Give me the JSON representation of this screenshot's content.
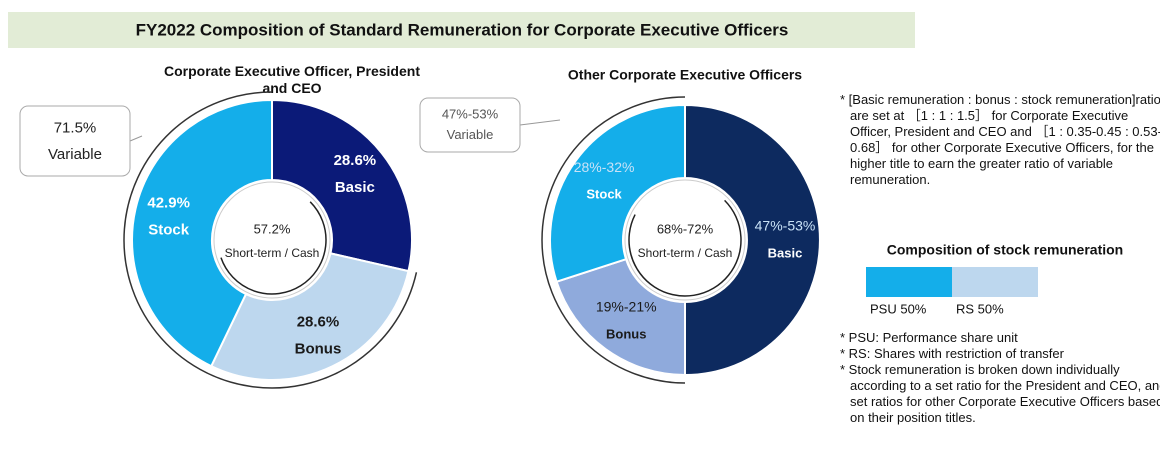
{
  "page_title": "FY2022 Composition of Standard Remuneration for Corporate Executive Officers",
  "chart_data": [
    {
      "type": "donut",
      "title": "Corporate Executive Officer, President and CEO",
      "categories": [
        "Basic",
        "Bonus",
        "Stock"
      ],
      "values": [
        28.6,
        28.6,
        42.9
      ],
      "value_labels": [
        "28.6%",
        "28.6%",
        "42.9%"
      ],
      "colors": [
        "#0b1a78",
        "#bdd7ee",
        "#14aeea"
      ],
      "text_colors": [
        "#ffffff",
        "#1a1a1a",
        "#ffffff"
      ],
      "inner": {
        "value": 57.2,
        "label": "57.2%",
        "text": "Short-term / Cash"
      },
      "outer": {
        "value": 71.5,
        "label": "71.5%",
        "text": "Variable"
      }
    },
    {
      "type": "donut",
      "title": "Other Corporate Executive Officers",
      "categories": [
        "Basic",
        "Bonus",
        "Stock"
      ],
      "values": [
        50,
        20,
        30
      ],
      "value_labels": [
        "47%-53%",
        "19%-21%",
        "28%-32%"
      ],
      "colors": [
        "#0d2a5f",
        "#8faadc",
        "#14aeea"
      ],
      "text_colors": [
        "#ffffff",
        "#1a1a1a",
        "#ffffff"
      ],
      "inner": {
        "value": 70,
        "label": "68%-72%",
        "text": "Short-term / Cash"
      },
      "outer": {
        "value": 50,
        "label": "47%-53%",
        "text": "Variable"
      }
    },
    {
      "type": "stacked_bar",
      "title": "Composition of stock remuneration",
      "values": [
        50,
        50
      ],
      "value_labels": [
        "PSU 50%",
        "RS 50%"
      ],
      "colors": [
        "#14aeea",
        "#bdd7ee"
      ]
    }
  ],
  "notes": [
    "* [Basic remuneration : bonus : stock remuneration]ratios are set at ［1 : 1 : 1.5］ for Corporate Executive Officer, President and CEO and ［1 : 0.35-0.45 : 0.53-0.68］ for other Corporate Executive Officers, for the higher title to earn the greater ratio of variable remuneration."
  ],
  "footnotes": [
    "* PSU: Performance share unit",
    "* RS: Shares with restriction of transfer",
    "* Stock remuneration is broken down individually according to a set ratio for the President and CEO, and set ratios for other Corporate Executive Officers based on their position titles."
  ]
}
